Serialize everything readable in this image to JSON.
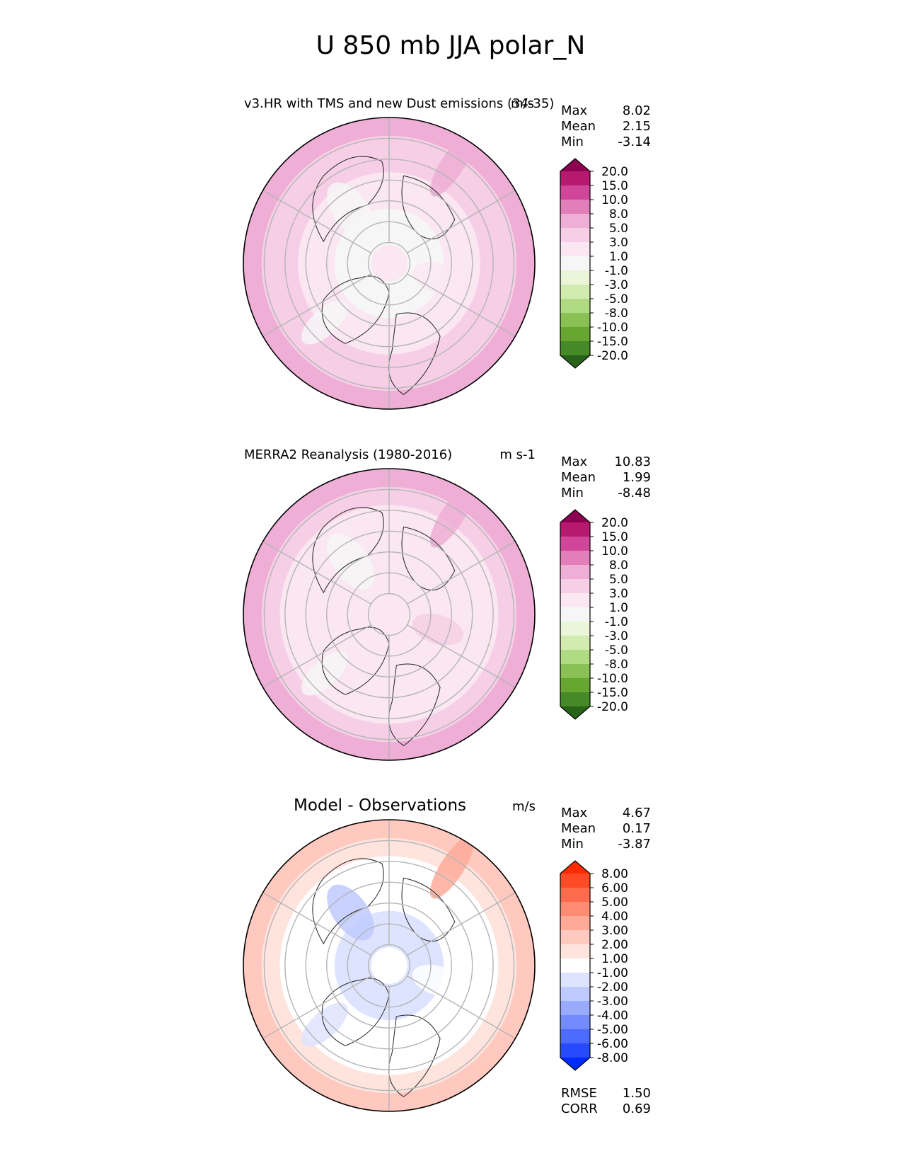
{
  "title": "U 850 mb JJA polar_N",
  "chart_data": [
    {
      "type": "heatmap",
      "projection": "north-polar-stereographic",
      "title": "v3.HR with TMS and new Dust emissions (34-35)",
      "units": "m/s",
      "stats": {
        "max": {
          "label": "Max",
          "value": "8.02"
        },
        "mean": {
          "label": "Mean",
          "value": "2.15"
        },
        "min": {
          "label": "Min",
          "value": "-3.14"
        }
      },
      "colorbar": {
        "levels": [
          "20.0",
          "15.0",
          "10.0",
          "8.0",
          "5.0",
          "3.0",
          "1.0",
          "-1.0",
          "-3.0",
          "-5.0",
          "-8.0",
          "-10.0",
          "-15.0",
          "-20.0"
        ],
        "colors": [
          "#8e0152",
          "#b7196f",
          "#d0479a",
          "#e27eb9",
          "#eeaed5",
          "#f6cfe6",
          "#fae7f1",
          "#f6f6f6",
          "#eaf5d9",
          "#d2ecb0",
          "#b0db82",
          "#8ac154",
          "#67a631",
          "#468a27",
          "#276419"
        ]
      },
      "field": {
        "ring_means": [
          1.0,
          0.5,
          -0.3,
          1.2,
          2.5,
          3.5,
          4.5,
          6.0
        ]
      }
    },
    {
      "type": "heatmap",
      "projection": "north-polar-stereographic",
      "title": "MERRA2 Reanalysis (1980-2016)",
      "units": "m s-1",
      "stats": {
        "max": {
          "label": "Max",
          "value": "10.83"
        },
        "mean": {
          "label": "Mean",
          "value": "1.99"
        },
        "min": {
          "label": "Min",
          "value": "-8.48"
        }
      },
      "colorbar": {
        "levels": [
          "20.0",
          "15.0",
          "10.0",
          "8.0",
          "5.0",
          "3.0",
          "1.0",
          "-1.0",
          "-3.0",
          "-5.0",
          "-8.0",
          "-10.0",
          "-15.0",
          "-20.0"
        ],
        "colors": [
          "#8e0152",
          "#b7196f",
          "#d0479a",
          "#e27eb9",
          "#eeaed5",
          "#f6cfe6",
          "#fae7f1",
          "#f6f6f6",
          "#eaf5d9",
          "#d2ecb0",
          "#b0db82",
          "#8ac154",
          "#67a631",
          "#468a27",
          "#276419"
        ]
      },
      "field": {
        "ring_means": [
          1.5,
          1.8,
          2.0,
          2.0,
          2.2,
          2.5,
          3.5,
          5.0
        ]
      }
    },
    {
      "type": "heatmap",
      "projection": "north-polar-stereographic",
      "title": "Model - Observations",
      "units": "m/s",
      "stats": {
        "max": {
          "label": "Max",
          "value": "4.67"
        },
        "mean": {
          "label": "Mean",
          "value": "0.17"
        },
        "min": {
          "label": "Min",
          "value": "-3.87"
        }
      },
      "colorbar": {
        "levels": [
          "8.00",
          "6.00",
          "5.00",
          "4.00",
          "3.00",
          "2.00",
          "1.00",
          "-1.00",
          "-2.00",
          "-3.00",
          "-4.00",
          "-5.00",
          "-6.00",
          "-8.00"
        ],
        "colors": [
          "#ff2b00",
          "#ff4a26",
          "#ff6c4d",
          "#ff8b73",
          "#ffaa99",
          "#ffc9bf",
          "#ffe4de",
          "#ffffff",
          "#dee4ff",
          "#bfcaff",
          "#99aaff",
          "#738bff",
          "#4d6cff",
          "#264aff",
          "#002bff"
        ]
      },
      "field": {
        "ring_means": [
          -0.5,
          -1.2,
          -1.8,
          -1.0,
          0.2,
          0.8,
          1.5,
          2.0
        ]
      },
      "metrics": {
        "rmse": {
          "label": "RMSE",
          "value": "1.50"
        },
        "corr": {
          "label": "CORR",
          "value": "0.69"
        }
      }
    }
  ]
}
